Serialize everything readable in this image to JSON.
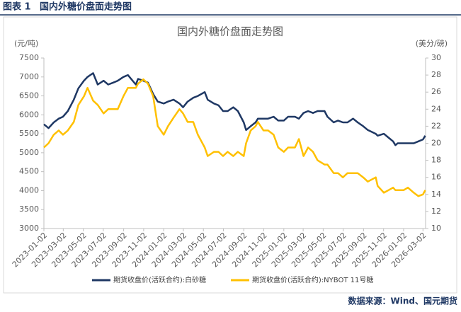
{
  "header": {
    "label": "图表 1",
    "title": "国内外糖价盘面走势图"
  },
  "chart_data": {
    "type": "line",
    "title": "国内外糖价盘面走势图",
    "y_unit": "(元/吨)",
    "y2_unit": "(美分/磅)",
    "x": [
      "2023-01-02",
      "2023-01-16",
      "2023-02-01",
      "2023-02-16",
      "2023-03-01",
      "2023-03-16",
      "2023-04-03",
      "2023-04-17",
      "2023-05-04",
      "2023-05-15",
      "2023-06-01",
      "2023-06-15",
      "2023-07-03",
      "2023-07-17",
      "2023-08-01",
      "2023-08-15",
      "2023-09-01",
      "2023-09-15",
      "2023-10-09",
      "2023-10-16",
      "2023-11-01",
      "2023-11-15",
      "2023-12-01",
      "2023-12-15",
      "2024-01-02",
      "2024-01-15",
      "2024-02-01",
      "2024-02-19",
      "2024-03-01",
      "2024-03-15",
      "2024-04-01",
      "2024-04-15",
      "2024-05-06",
      "2024-05-15",
      "2024-06-03",
      "2024-06-17",
      "2024-07-01",
      "2024-07-15",
      "2024-08-01",
      "2024-08-15",
      "2024-09-02",
      "2024-09-09",
      "2024-09-23",
      "2024-10-08",
      "2024-10-15",
      "2024-11-01",
      "2024-11-15",
      "2024-12-02",
      "2024-12-16",
      "2025-01-02",
      "2025-01-15",
      "2025-02-05",
      "2025-02-17",
      "2025-03-03",
      "2025-03-17",
      "2025-04-01",
      "2025-04-15",
      "2025-05-06",
      "2025-05-15",
      "2025-06-03",
      "2025-06-16",
      "2025-07-01",
      "2025-07-15",
      "2025-08-01",
      "2025-08-15",
      "2025-09-01",
      "2025-09-15",
      "2025-10-09",
      "2025-10-15",
      "2025-11-03",
      "2025-11-17",
      "2025-12-01",
      "2025-12-08",
      "2025-12-15",
      "2026-01-02",
      "2026-01-15",
      "2026-02-02",
      "2026-02-16",
      "2026-03-02",
      "2026-03-09"
    ],
    "series": [
      {
        "name": "期货收盘价(活跃合约):白砂糖",
        "color": "#1f3864",
        "axis": "y",
        "values": [
          5750,
          5650,
          5800,
          5900,
          5950,
          6100,
          6400,
          6700,
          6900,
          7000,
          7100,
          6800,
          6900,
          6800,
          6850,
          6900,
          7000,
          7050,
          6800,
          6950,
          6900,
          6850,
          6550,
          6350,
          6300,
          6350,
          6400,
          6300,
          6200,
          6350,
          6450,
          6500,
          6600,
          6400,
          6300,
          6250,
          6100,
          6100,
          6200,
          6100,
          5800,
          5600,
          5700,
          5800,
          5900,
          5900,
          5900,
          5950,
          5850,
          5850,
          5950,
          5950,
          5900,
          6050,
          6100,
          6050,
          6100,
          6100,
          5950,
          5800,
          5850,
          5800,
          5800,
          5900,
          5800,
          5700,
          5600,
          5500,
          5450,
          5500,
          5400,
          5300,
          5200,
          5250,
          5250,
          5250,
          5250,
          5300,
          5350,
          5450
        ]
      },
      {
        "name": "期货收盘价(活跃合约):NYBOT 11号糖",
        "color": "#ffc000",
        "axis": "y2",
        "values": [
          19.5,
          20,
          21,
          21.5,
          21,
          21.5,
          22.5,
          24.5,
          25.5,
          26.5,
          25,
          24.5,
          23.5,
          24,
          24,
          24,
          25.5,
          26.5,
          26.5,
          27,
          27.5,
          27,
          25.5,
          22,
          21,
          22,
          23,
          24,
          23.5,
          22.5,
          22.5,
          21,
          19.5,
          18.5,
          19,
          19,
          18.5,
          19,
          18.5,
          19,
          18.5,
          20,
          21.5,
          22,
          22.5,
          21.5,
          21.5,
          21,
          19.5,
          19,
          19.5,
          19.5,
          20.5,
          18.5,
          19.5,
          19,
          18,
          17.5,
          17.5,
          16.5,
          16.5,
          16,
          16.5,
          16.5,
          16.5,
          16,
          15.5,
          16,
          15,
          14.2,
          14.5,
          14.8,
          14.5,
          14.5,
          14.5,
          14.8,
          14.2,
          13.8,
          14,
          14.5
        ]
      }
    ],
    "xlim": [
      "2023-01-02",
      "2026-03-10"
    ],
    "xticks": [
      "2023-01-02",
      "2023-03-02",
      "2023-05-02",
      "2023-07-02",
      "2023-09-02",
      "2023-11-02",
      "2024-01-02",
      "2024-03-02",
      "2024-05-02",
      "2024-07-02",
      "2024-09-02",
      "2024-11-02",
      "2025-01-02",
      "2025-03-02",
      "2025-05-02",
      "2025-07-02",
      "2025-09-02",
      "2025-11-02",
      "2026-01-02",
      "2026-03-02"
    ],
    "ylim": [
      3000,
      7500
    ],
    "yticks": [
      3000,
      3500,
      4000,
      4500,
      5000,
      5500,
      6000,
      6500,
      7000,
      7500
    ],
    "y2lim": [
      10,
      30
    ],
    "y2ticks": [
      10,
      12,
      14,
      16,
      18,
      20,
      22,
      24,
      26,
      28,
      30
    ],
    "legend": "bottom"
  },
  "footer": {
    "source": "数据来源：Wind、国元期货"
  }
}
